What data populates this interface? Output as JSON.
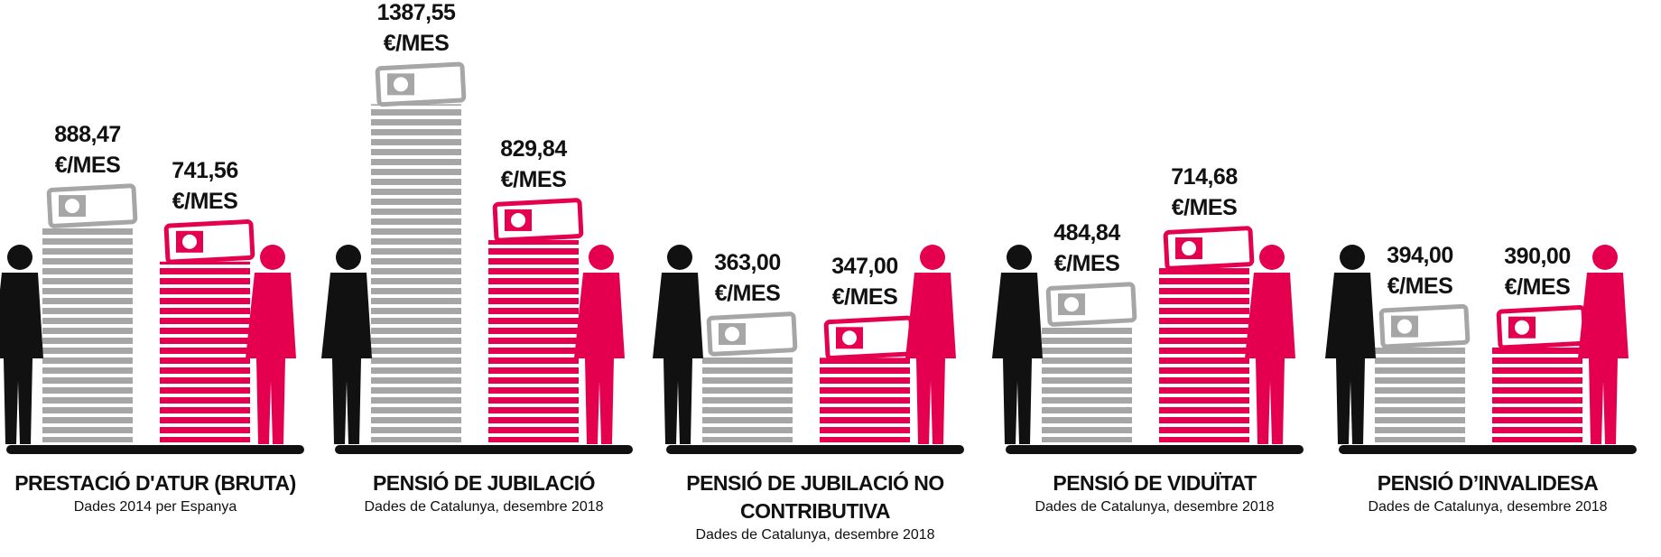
{
  "chart_data": [
    {
      "type": "pictorial-bar",
      "title": "PRESTACIÓ D'ATUR (BRUTA)",
      "subtitle": "Dades 2014 per Espanya",
      "values": [
        888.47,
        741.56
      ],
      "value_labels": [
        "888,47 €/MES",
        "741,56 €/MES"
      ],
      "colors": [
        "#a6a6a6",
        "#e5004f"
      ]
    },
    {
      "type": "pictorial-bar",
      "title": "PENSIÓ DE JUBILACIÓ",
      "subtitle": "Dades de Catalunya, desembre 2018",
      "values": [
        1387.55,
        829.84
      ],
      "value_labels": [
        "1387,55 €/MES",
        "829,84 €/MES"
      ],
      "colors": [
        "#a6a6a6",
        "#e5004f"
      ]
    },
    {
      "type": "pictorial-bar",
      "title": "PENSIÓ DE JUBILACIÓ NO CONTRIBUTIVA",
      "subtitle": "Dades de Catalunya, desembre 2018",
      "values": [
        363.0,
        347.0
      ],
      "value_labels": [
        "363,00 €/MES",
        "347,00 €/MES"
      ],
      "colors": [
        "#a6a6a6",
        "#e5004f"
      ]
    },
    {
      "type": "pictorial-bar",
      "title": "PENSIÓ DE VIDUÏTAT",
      "subtitle": "Dades de Catalunya, desembre 2018",
      "values": [
        484.84,
        714.68
      ],
      "value_labels": [
        "484,84 €/MES",
        "714,68 €/MES"
      ],
      "colors": [
        "#a6a6a6",
        "#e5004f"
      ]
    },
    {
      "type": "pictorial-bar",
      "title": "PENSIÓ D’INVALIDESA",
      "subtitle": "Dades de Catalunya, desembre 2018",
      "values": [
        394.0,
        390.0
      ],
      "value_labels": [
        "394,00 €/MES",
        "390,00 €/MES"
      ],
      "colors": [
        "#a6a6a6",
        "#e5004f"
      ]
    }
  ]
}
